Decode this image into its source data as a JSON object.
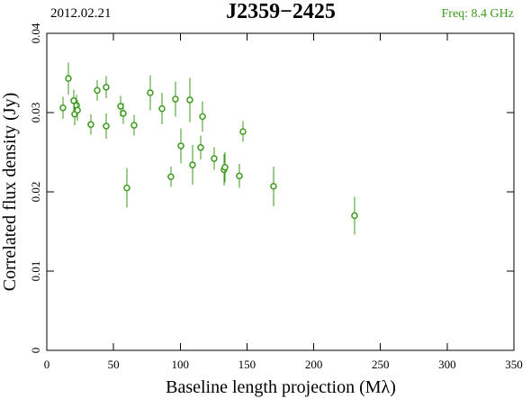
{
  "chart_data": {
    "type": "scatter",
    "title": "J2359−2425",
    "date": "2012.02.21",
    "frequency": "Freq: 8.4 GHz",
    "xlabel": "Baseline length projection (Mλ)",
    "ylabel": "Correlated flux density (Jy)",
    "color": "#3c9a1c",
    "x": [
      12.1,
      16.2,
      20.2,
      20.9,
      22.3,
      23,
      33,
      37.8,
      44.5,
      44.5,
      55.3,
      57.3,
      60,
      65.4,
      77.5,
      86.3,
      93,
      96.4,
      100.5,
      107.2,
      109.2,
      115.3,
      116.7,
      125.4,
      132.8,
      133.5,
      144.3,
      147,
      169.9,
      230.6
    ],
    "values": [
      0.0306,
      0.0343,
      0.0315,
      0.0298,
      0.0309,
      0.0303,
      0.0285,
      0.0328,
      0.0283,
      0.0332,
      0.0308,
      0.0299,
      0.0205,
      0.0284,
      0.0325,
      0.0305,
      0.0219,
      0.0317,
      0.0258,
      0.0316,
      0.0234,
      0.0256,
      0.0295,
      0.0242,
      0.0228,
      0.0231,
      0.022,
      0.0276,
      0.0207,
      0.017
    ],
    "errors": [
      0.0014,
      0.002,
      0.0014,
      0.0014,
      0.0013,
      0.0013,
      0.0013,
      0.0013,
      0.0016,
      0.0014,
      0.0013,
      0.0013,
      0.0025,
      0.0013,
      0.0022,
      0.002,
      0.0013,
      0.0022,
      0.0022,
      0.0028,
      0.0025,
      0.0015,
      0.0019,
      0.0014,
      0.002,
      0.0019,
      0.0015,
      0.0013,
      0.0025,
      0.0024
    ],
    "xlim": [
      0,
      350
    ],
    "xticks": [
      0,
      50,
      100,
      150,
      200,
      250,
      300,
      350
    ],
    "ylim": [
      0,
      0.04
    ],
    "yticks": [
      0,
      0.01,
      0.02,
      0.03,
      0.04
    ]
  }
}
